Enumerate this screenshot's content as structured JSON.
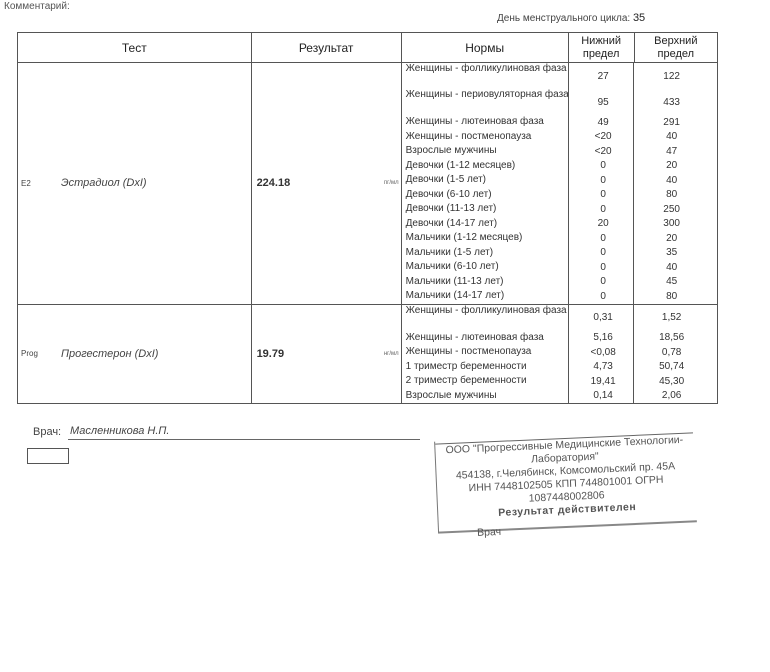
{
  "header": {
    "comment_label": "Комментарий:",
    "cycle_label": "День менструального цикла:",
    "cycle_value": "35"
  },
  "table": {
    "columns": {
      "test": "Тест",
      "result": "Результат",
      "norms": "Нормы",
      "lower": "Нижний предел",
      "upper": "Верхний предел"
    },
    "rows": [
      {
        "code": "E2",
        "name": "Эстрадиол (DxI)",
        "result": "224.18",
        "unit": "пг/мл",
        "norms": [
          {
            "label": "Женщины - фолликулиновая фаза",
            "lower": "27",
            "upper": "122"
          },
          {
            "label": "Женщины - периовуляторная фаза",
            "lower": "95",
            "upper": "433"
          },
          {
            "label": "Женщины - лютеиновая фаза",
            "lower": "49",
            "upper": "291"
          },
          {
            "label": "Женщины - постменопауза",
            "lower": "<20",
            "upper": "40"
          },
          {
            "label": "Взрослые мужчины",
            "lower": "<20",
            "upper": "47"
          },
          {
            "label": "Девочки (1-12 месяцев)",
            "lower": "0",
            "upper": "20"
          },
          {
            "label": "Девочки (1-5 лет)",
            "lower": "0",
            "upper": "40"
          },
          {
            "label": "Девочки (6-10 лет)",
            "lower": "0",
            "upper": "80"
          },
          {
            "label": "Девочки (11-13 лет)",
            "lower": "0",
            "upper": "250"
          },
          {
            "label": "Девочки (14-17 лет)",
            "lower": "20",
            "upper": "300"
          },
          {
            "label": "Мальчики (1-12 месяцев)",
            "lower": "0",
            "upper": "20"
          },
          {
            "label": "Мальчики (1-5 лет)",
            "lower": "0",
            "upper": "35"
          },
          {
            "label": "Мальчики (6-10 лет)",
            "lower": "0",
            "upper": "40"
          },
          {
            "label": "Мальчики (11-13 лет)",
            "lower": "0",
            "upper": "45"
          },
          {
            "label": "Мальчики (14-17 лет)",
            "lower": "0",
            "upper": "80"
          }
        ]
      },
      {
        "code": "Prog",
        "name": "Прогестерон (DxI)",
        "result": "19.79",
        "unit": "нг/мл",
        "norms": [
          {
            "label": "Женщины - фолликулиновая фаза",
            "lower": "0,31",
            "upper": "1,52"
          },
          {
            "label": "Женщины - лютеиновая фаза",
            "lower": "5,16",
            "upper": "18,56"
          },
          {
            "label": "Женщины - постменопауза",
            "lower": "<0,08",
            "upper": "0,78"
          },
          {
            "label": "1 триместр беременности",
            "lower": "4,73",
            "upper": "50,74"
          },
          {
            "label": "2 триместр беременности",
            "lower": "19,41",
            "upper": "45,30"
          },
          {
            "label": "Взрослые мужчины",
            "lower": "0,14",
            "upper": "2,06"
          }
        ]
      }
    ]
  },
  "footer": {
    "doctor_label": "Врач:",
    "doctor_name": "Масленникова Н.П."
  },
  "stamp": {
    "line1": "ООО \"Прогрессивные Медицинские Технологии-",
    "line2": "Лаборатория\"",
    "line3": "454138, г.Челябинск, Комсомольский пр. 45А",
    "line4": "ИНН 7448102505  КПП 744801001 ОГРН 1087448002806",
    "line5": "Результат действителен",
    "line6": "Врач"
  }
}
